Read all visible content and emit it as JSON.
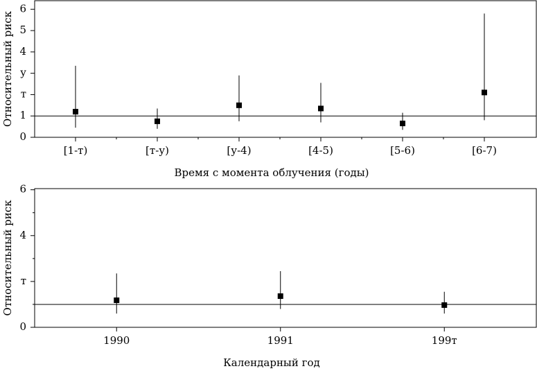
{
  "chart_data": [
    {
      "type": "errorbar",
      "ylabel": "Относительный риск",
      "xlabel": "Время с момента облучения (годы)",
      "categories": [
        "[1-т)",
        "[т-у)",
        "[у-4)",
        "[4-5)",
        "[5-6)",
        "[6-7)"
      ],
      "values": [
        1.2,
        0.75,
        1.5,
        1.35,
        0.65,
        2.1
      ],
      "lower": [
        0.45,
        0.4,
        0.75,
        0.7,
        0.35,
        0.8
      ],
      "upper": [
        3.35,
        1.35,
        2.9,
        2.55,
        1.15,
        5.8
      ],
      "color": "#000000",
      "hline": 1,
      "ylim": [
        0,
        6.4
      ],
      "yticks": [
        0,
        1,
        {
          "value": 2,
          "label": "т"
        },
        {
          "value": 3,
          "label": "у"
        },
        4,
        5,
        6
      ]
    },
    {
      "type": "errorbar",
      "ylabel": "Относительный риск",
      "xlabel": "Календарный год",
      "categories": [
        "1990",
        "1991",
        "199т"
      ],
      "values": [
        1.18,
        1.36,
        0.97
      ],
      "lower": [
        0.6,
        0.8,
        0.6
      ],
      "upper": [
        2.35,
        2.45,
        1.55
      ],
      "color": "#000000",
      "hline": 1,
      "ylim": [
        0,
        6.05
      ],
      "yticks": [
        0,
        {
          "value": 2,
          "label": "т"
        },
        4,
        6
      ],
      "minor_yticks": [
        1,
        3,
        5
      ]
    }
  ]
}
